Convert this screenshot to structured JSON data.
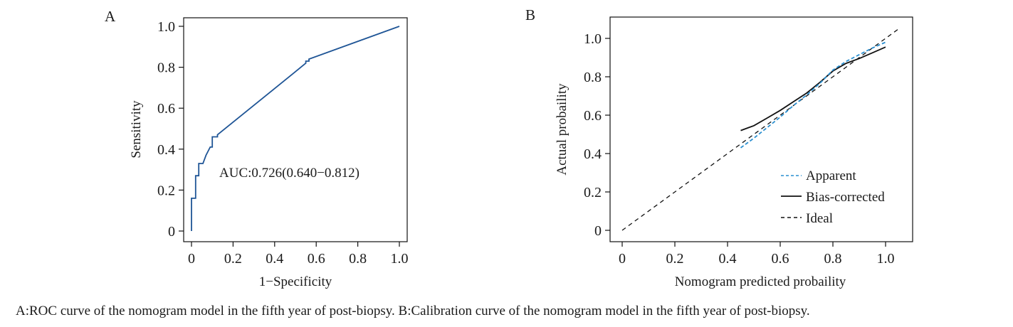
{
  "caption": "A:ROC curve of the nomogram model in the fifth year of post-biopsy. B:Calibration curve of the nomogram model in the fifth year of post-biopsy.",
  "colors": {
    "roc_line": "#1f5596",
    "apparent": "#2a8fd0",
    "bias": "#111111",
    "ideal": "#111111",
    "axis": "#111111"
  },
  "chart_data": [
    {
      "panel": "A",
      "type": "line",
      "title": "",
      "xlabel": "1−Specificity",
      "ylabel": "Sensitivity",
      "xlim": [
        0,
        1
      ],
      "ylim": [
        0,
        1
      ],
      "xticks": [
        0,
        0.2,
        0.4,
        0.6,
        0.8,
        1.0
      ],
      "xtick_labels": [
        "0",
        "0.2",
        "0.4",
        "0.6",
        "0.8",
        "1.0"
      ],
      "yticks": [
        0,
        0.2,
        0.4,
        0.6,
        0.8,
        1.0
      ],
      "ytick_labels": [
        "0",
        "0.2",
        "0.4",
        "0.6",
        "0.8",
        "1.0"
      ],
      "annotation": "AUC:0.726(0.640−0.812)",
      "series": [
        {
          "name": "ROC",
          "x": [
            0,
            0,
            0.02,
            0.02,
            0.035,
            0.035,
            0.055,
            0.07,
            0.09,
            0.1,
            0.1,
            0.125,
            0.125,
            0.49,
            0.55,
            0.55,
            0.565,
            0.565,
            1.0
          ],
          "y": [
            0,
            0.16,
            0.16,
            0.27,
            0.27,
            0.33,
            0.33,
            0.37,
            0.41,
            0.41,
            0.46,
            0.46,
            0.47,
            0.77,
            0.82,
            0.83,
            0.83,
            0.84,
            1.0
          ]
        }
      ]
    },
    {
      "panel": "B",
      "type": "line",
      "title": "",
      "xlabel": "Nomogram predicted probaility",
      "ylabel": "Actual probaility",
      "xlim": [
        0,
        1.05
      ],
      "ylim": [
        0,
        1.05
      ],
      "xticks": [
        0,
        0.2,
        0.4,
        0.6,
        0.8,
        1.0
      ],
      "xtick_labels": [
        "0",
        "0.2",
        "0.4",
        "0.6",
        "0.8",
        "1.0"
      ],
      "yticks": [
        0,
        0.2,
        0.4,
        0.6,
        0.8,
        1.0
      ],
      "ytick_labels": [
        "0",
        "0.2",
        "0.4",
        "0.6",
        "0.8",
        "1.0"
      ],
      "legend_position": "bottom-right",
      "series": [
        {
          "name": "Apparent",
          "style": "dashed",
          "x": [
            0.45,
            0.5,
            0.55,
            0.6,
            0.65,
            0.7,
            0.75,
            0.8,
            0.85,
            0.9,
            0.95,
            1.0
          ],
          "y": [
            0.43,
            0.48,
            0.535,
            0.59,
            0.65,
            0.705,
            0.765,
            0.835,
            0.88,
            0.915,
            0.95,
            0.98
          ]
        },
        {
          "name": "Bias-corrected",
          "style": "solid",
          "x": [
            0.45,
            0.48,
            0.5,
            0.55,
            0.6,
            0.65,
            0.7,
            0.75,
            0.8,
            0.85,
            0.9,
            0.95,
            1.0
          ],
          "y": [
            0.52,
            0.535,
            0.545,
            0.585,
            0.625,
            0.67,
            0.715,
            0.77,
            0.83,
            0.87,
            0.895,
            0.925,
            0.955
          ]
        },
        {
          "name": "Ideal",
          "style": "dashed",
          "x": [
            0,
            1.05
          ],
          "y": [
            0,
            1.05
          ]
        }
      ]
    }
  ]
}
